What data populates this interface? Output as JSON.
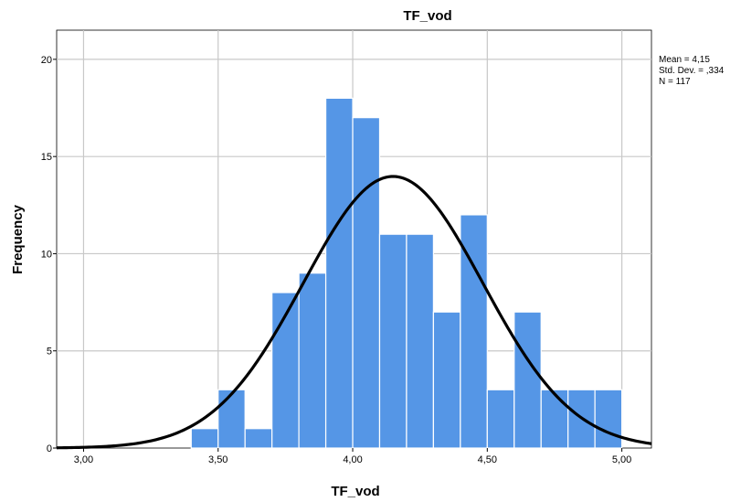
{
  "chart_data": {
    "type": "histogram",
    "title": "TF_vod",
    "xlabel": "TF_vod",
    "ylabel": "Frequency",
    "xlim": [
      2.9,
      5.11
    ],
    "ylim": [
      0,
      21.5
    ],
    "x_ticks": [
      3.0,
      3.5,
      4.0,
      4.5,
      5.0
    ],
    "x_tick_labels": [
      "3,00",
      "3,50",
      "4,00",
      "4,50",
      "5,00"
    ],
    "y_ticks": [
      0,
      5,
      10,
      15,
      20
    ],
    "y_tick_labels": [
      "0",
      "5",
      "10",
      "15",
      "20"
    ],
    "grid": true,
    "bar_color": "#5596E6",
    "bar_edge_color": "#ffffff",
    "curve_color": "#000000",
    "bins": [
      {
        "start": 3.4,
        "end": 3.5,
        "count": 1
      },
      {
        "start": 3.5,
        "end": 3.6,
        "count": 3
      },
      {
        "start": 3.6,
        "end": 3.7,
        "count": 1
      },
      {
        "start": 3.7,
        "end": 3.8,
        "count": 8
      },
      {
        "start": 3.8,
        "end": 3.9,
        "count": 9
      },
      {
        "start": 3.9,
        "end": 4.0,
        "count": 18
      },
      {
        "start": 4.0,
        "end": 4.1,
        "count": 17
      },
      {
        "start": 4.1,
        "end": 4.2,
        "count": 11
      },
      {
        "start": 4.2,
        "end": 4.3,
        "count": 11
      },
      {
        "start": 4.3,
        "end": 4.4,
        "count": 7
      },
      {
        "start": 4.4,
        "end": 4.5,
        "count": 12
      },
      {
        "start": 4.5,
        "end": 4.6,
        "count": 3
      },
      {
        "start": 4.6,
        "end": 4.7,
        "count": 7
      },
      {
        "start": 4.7,
        "end": 4.8,
        "count": 3
      },
      {
        "start": 4.8,
        "end": 4.9,
        "count": 3
      },
      {
        "start": 4.9,
        "end": 5.0,
        "count": 3
      }
    ],
    "normal_curve": {
      "mean": 4.15,
      "std": 0.334,
      "n": 117,
      "bin_width": 0.1
    },
    "stats": {
      "mean_label": "Mean = 4,15",
      "std_label": "Std. Dev. = ,334",
      "n_label": "N = 117"
    }
  }
}
